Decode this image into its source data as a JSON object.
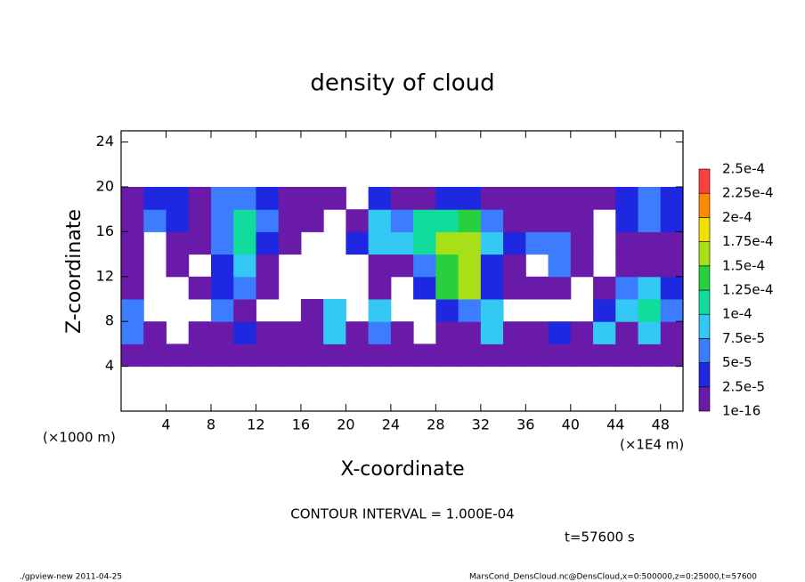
{
  "chart_data": {
    "type": "contour",
    "title": "density of cloud",
    "x_label": "X-coordinate",
    "y_label": "Z-coordinate",
    "x_unit_left": "(×1000 m)",
    "x_unit_right": "(×1E4 m)",
    "contour_note": "CONTOUR INTERVAL = 1.000E-04",
    "time_note": "t=57600 s",
    "footer_left": "./gpview-new  2011-04-25",
    "footer_right": "MarsCond_DensCloud.nc@DensCloud,x=0:500000,z=0:25000,t=57600",
    "xlim": [
      0,
      50
    ],
    "ylim": [
      0,
      25
    ],
    "xticks": [
      4,
      8,
      12,
      16,
      20,
      24,
      28,
      32,
      36,
      40,
      44,
      48
    ],
    "yticks": [
      4,
      8,
      12,
      16,
      20,
      24
    ],
    "x": [
      1,
      3,
      5,
      7,
      9,
      11,
      13,
      15,
      17,
      19,
      21,
      23,
      25,
      27,
      29,
      31,
      33,
      35,
      37,
      39,
      41,
      43,
      45,
      47,
      49
    ],
    "y": [
      5,
      7,
      9,
      11,
      13,
      15,
      17,
      19
    ],
    "z": [
      [
        1e-05,
        1e-05,
        1e-05,
        1e-05,
        1e-05,
        1e-05,
        1e-05,
        1e-05,
        1e-05,
        1e-05,
        1e-05,
        1e-05,
        1e-05,
        1e-05,
        1e-05,
        1e-05,
        1e-05,
        1e-05,
        1e-05,
        1e-05,
        1e-05,
        1e-05,
        1e-05,
        1e-05,
        1e-05
      ],
      [
        6e-05,
        1e-05,
        null,
        1e-05,
        1e-05,
        3e-05,
        1e-05,
        1e-05,
        2e-05,
        8e-05,
        1e-05,
        6e-05,
        1e-05,
        null,
        1e-05,
        1e-05,
        8e-05,
        1e-05,
        1e-05,
        3e-05,
        1e-05,
        8e-05,
        1e-05,
        9e-05,
        1e-05
      ],
      [
        6e-05,
        null,
        null,
        null,
        5e-05,
        1e-05,
        null,
        null,
        1e-05,
        8e-05,
        null,
        9e-05,
        null,
        null,
        3e-05,
        7e-05,
        8e-05,
        null,
        null,
        null,
        null,
        4e-05,
        9e-05,
        0.00011,
        5e-05
      ],
      [
        1e-05,
        null,
        null,
        1e-05,
        4e-05,
        5e-05,
        1e-05,
        null,
        null,
        null,
        null,
        1e-05,
        null,
        3e-05,
        0.00013,
        0.00015,
        3e-05,
        1e-05,
        1e-05,
        1e-05,
        null,
        1e-05,
        7e-05,
        8e-05,
        3e-05
      ],
      [
        1e-05,
        null,
        1e-05,
        null,
        3e-05,
        9e-05,
        2e-05,
        null,
        null,
        null,
        null,
        1e-05,
        1e-05,
        5e-05,
        0.00014,
        0.00016,
        4e-05,
        1e-05,
        null,
        5e-05,
        1e-05,
        null,
        1e-05,
        1e-05,
        1e-05
      ],
      [
        1e-05,
        null,
        1e-05,
        1e-05,
        6e-05,
        0.00011,
        4e-05,
        1e-05,
        null,
        null,
        3e-05,
        8e-05,
        9e-05,
        0.00011,
        0.00015,
        0.00017,
        8e-05,
        3e-05,
        6e-05,
        5e-05,
        1e-05,
        null,
        1e-05,
        2e-05,
        1e-05
      ],
      [
        2e-05,
        5e-05,
        3e-05,
        1e-05,
        7e-05,
        0.0001,
        7e-05,
        2e-05,
        1e-05,
        null,
        1e-05,
        9e-05,
        6e-05,
        0.0001,
        0.00012,
        0.00013,
        7e-05,
        2e-05,
        1e-05,
        1e-05,
        1e-05,
        null,
        3e-05,
        5e-05,
        3e-05
      ],
      [
        1e-05,
        3e-05,
        4e-05,
        1e-05,
        5e-05,
        6e-05,
        3e-05,
        1e-05,
        1e-05,
        1e-05,
        null,
        3e-05,
        2e-05,
        1e-05,
        3e-05,
        3e-05,
        1e-05,
        1e-05,
        1e-05,
        1e-05,
        1e-05,
        1e-05,
        4e-05,
        5e-05,
        3e-05
      ]
    ],
    "levels": [
      1e-16,
      {
        "value": 2.5e-05,
        "label": "2.5e-5"
      },
      {
        "value": 5e-05,
        "label": "5e-5"
      },
      {
        "value": 7.5e-05,
        "label": "7.5e-5"
      },
      {
        "value": 0.0001,
        "label": "1e-4"
      },
      {
        "value": 0.000125,
        "label": "1.25e-4"
      },
      {
        "value": 0.00015,
        "label": "1.5e-4"
      },
      {
        "value": 0.000175,
        "label": "1.75e-4"
      },
      {
        "value": 0.0002,
        "label": "2e-4"
      },
      {
        "value": 0.000225,
        "label": "2.25e-4"
      },
      {
        "value": 0.00025,
        "label": "2.5e-4"
      }
    ],
    "colors": [
      "#6a1aa8",
      "#1e28e0",
      "#3c7cff",
      "#34c8f4",
      "#10dc9c",
      "#28d040",
      "#a8e018",
      "#f4e000",
      "#ff8c00",
      "#ff4040"
    ]
  }
}
